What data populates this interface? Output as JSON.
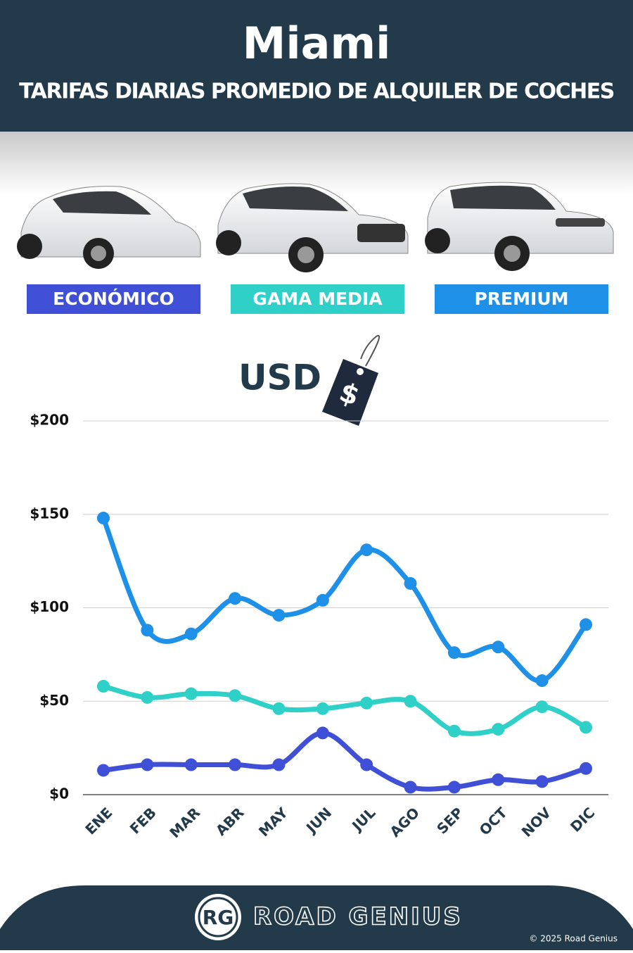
{
  "header": {
    "title": "Miami",
    "subtitle": "TARIFAS DIARIAS PROMEDIO DE ALQUILER DE COCHES"
  },
  "chart_data": {
    "type": "line",
    "currency": "USD",
    "currency_symbol": "$",
    "categories": [
      "ENE",
      "FEB",
      "MAR",
      "ABR",
      "MAY",
      "JUN",
      "JUL",
      "AGO",
      "SEP",
      "OCT",
      "NOV",
      "DIC"
    ],
    "series": [
      {
        "name": "ECONÓMICO",
        "color": "#3f4fd6",
        "values": [
          13,
          16,
          16,
          16,
          16,
          33,
          16,
          4,
          4,
          8,
          7,
          14
        ]
      },
      {
        "name": "GAMA MEDIA",
        "color": "#2fd0c8",
        "values": [
          58,
          52,
          54,
          53,
          46,
          46,
          49,
          50,
          34,
          35,
          47,
          36
        ]
      },
      {
        "name": "PREMIUM",
        "color": "#1e90e8",
        "values": [
          148,
          88,
          86,
          105,
          96,
          104,
          131,
          113,
          76,
          79,
          61,
          91
        ]
      }
    ],
    "ylim": [
      0,
      200
    ],
    "yticks": [
      {
        "value": 0,
        "label": "$0"
      },
      {
        "value": 50,
        "label": "$50"
      },
      {
        "value": 100,
        "label": "$100"
      },
      {
        "value": 150,
        "label": "$150"
      },
      {
        "value": 200,
        "label": "$200"
      }
    ],
    "grid": true
  },
  "footer": {
    "logo": "RG",
    "brand": "ROAD GENIUS",
    "copyright": "© 2025 Road Genius"
  }
}
